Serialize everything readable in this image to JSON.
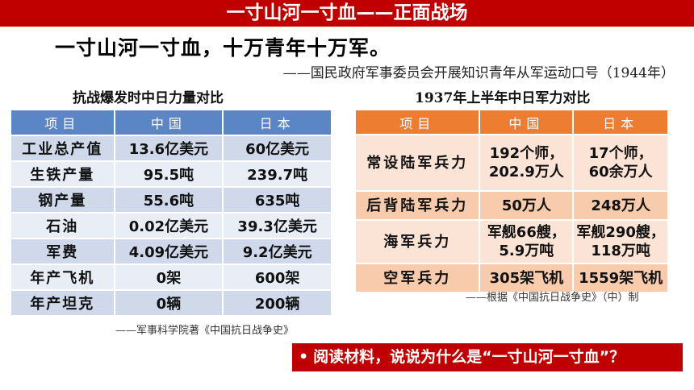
{
  "header": {
    "title": "一寸山河一寸血——正面战场"
  },
  "quote": {
    "text": "一寸山河一寸血，十万青年十万军。",
    "source": "——国民政府军事委员会开展知识青年从军运动口号（1944年）"
  },
  "left_table": {
    "caption": "抗战爆发时中日力量对比",
    "headers": [
      "项目",
      "中国",
      "日本"
    ],
    "rows": [
      [
        "工业总产值",
        "13.6亿美元",
        "60亿美元"
      ],
      [
        "生铁产量",
        "95.5吨",
        "239.7吨"
      ],
      [
        "钢产量",
        "55.6吨",
        "635吨"
      ],
      [
        "石油",
        "0.02亿美元",
        "39.3亿美元"
      ],
      [
        "军费",
        "4.09亿美元",
        "9.2亿美元"
      ],
      [
        "年产飞机",
        "0架",
        "600架"
      ],
      [
        "年产坦克",
        "0辆",
        "200辆"
      ]
    ],
    "note": "——军事科学院著《中国抗日战争史》"
  },
  "right_table": {
    "caption": "1937年上半年中日军力对比",
    "headers": [
      "项目",
      "中国",
      "日本"
    ],
    "rows": [
      {
        "label": "常设陆军兵力",
        "china": [
          "192个师，",
          "202.9万人"
        ],
        "japan": [
          "17个师，",
          "60余万人"
        ]
      },
      {
        "label": "后背陆军兵力",
        "china": [
          "50万人"
        ],
        "japan": [
          "248万人"
        ]
      },
      {
        "label": "海军兵力",
        "china": [
          "军舰66艘，",
          "5.9万吨"
        ],
        "japan": [
          "军舰290艘，",
          "118万吨"
        ]
      },
      {
        "label": "空军兵力",
        "china": [
          "305架飞机"
        ],
        "japan": [
          "1559架飞机"
        ]
      }
    ],
    "note": "——根据《中国抗日战争史》（中）制"
  },
  "question": {
    "bullet": "•",
    "text": "阅读材料，说说为什么是“一寸山河一寸血”？"
  },
  "colors": {
    "title_red": "#c00000",
    "blue_header": "#5b86c6",
    "orange_header": "#ed7d31"
  }
}
